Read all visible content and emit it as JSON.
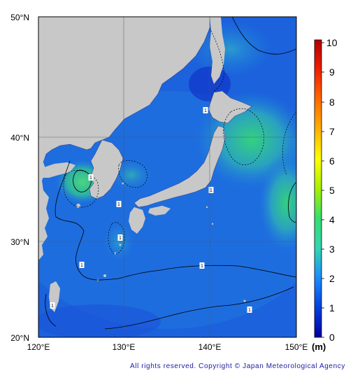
{
  "map": {
    "lat_labels": [
      "50°N",
      "40°N",
      "30°N",
      "20°N"
    ],
    "lon_labels": [
      "120°E",
      "130°E",
      "140°E",
      "150°E"
    ],
    "colorbar": {
      "ticks": [
        "10",
        "9",
        "8",
        "7",
        "6",
        "5",
        "4",
        "3",
        "2",
        "1",
        "0"
      ],
      "unit": "(m)",
      "colors": [
        "#0000a0",
        "#0040e0",
        "#1a8cff",
        "#33d6b0",
        "#33e070",
        "#a8f000",
        "#ffff00",
        "#ffb000",
        "#ff6a00",
        "#f02000",
        "#b00000"
      ]
    },
    "contour_labels": [
      "1",
      "1",
      "1",
      "1",
      "1",
      "1",
      "1",
      "1",
      "1"
    ],
    "colors": {
      "land": "#c8c8c8",
      "sea_deep": "#1640d8",
      "sea_mid": "#1e7ae0",
      "sea_teal": "#2fb0b0",
      "sea_green": "#2ed070"
    }
  },
  "footer": {
    "copyright": "All rights reserved. Copyright © Japan Meteorological Agency"
  }
}
